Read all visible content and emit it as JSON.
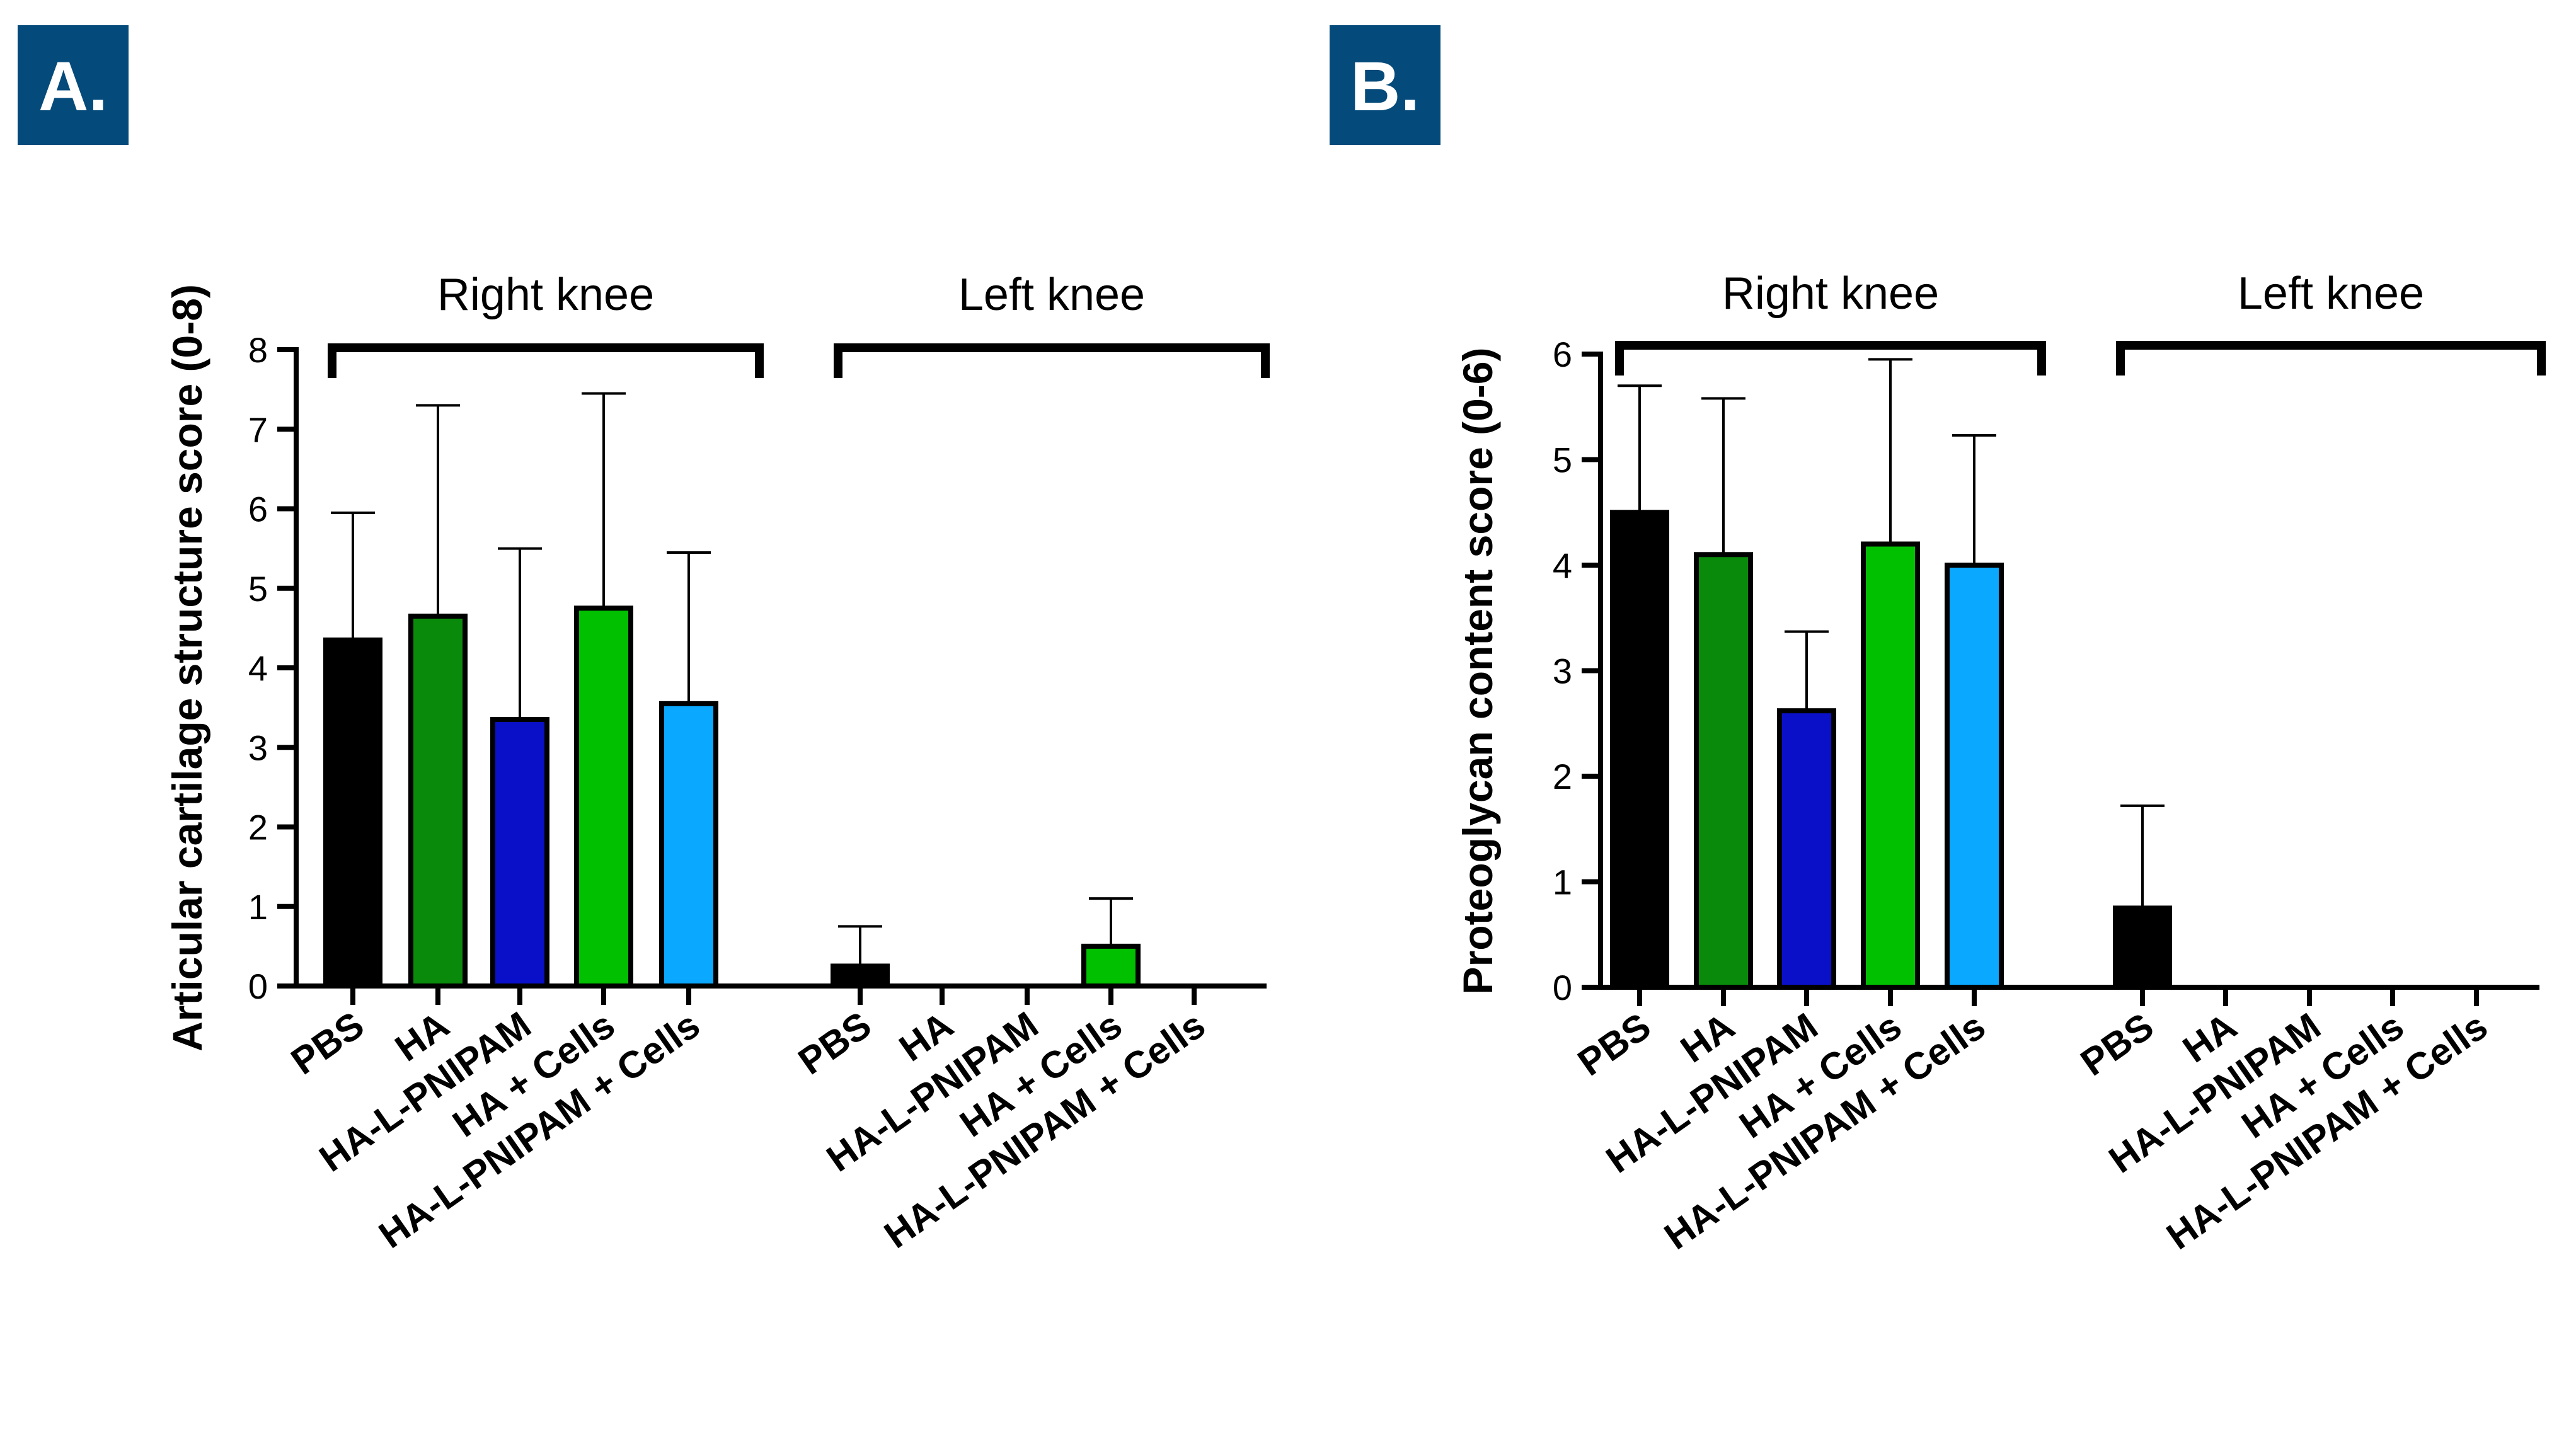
{
  "chart_data": [
    {
      "panel": "A.",
      "type": "bar",
      "ylabel": "Articular cartilage structure score (0-8)",
      "ylim": [
        0,
        8
      ],
      "yticks": [
        0,
        1,
        2,
        3,
        4,
        5,
        6,
        7,
        8
      ],
      "groups": [
        {
          "name": "Right knee",
          "categories": [
            "PBS",
            "HA",
            "HA-L-PNIPAM",
            "HA + Cells",
            "HA-L-PNIPAM + Cells"
          ],
          "values": [
            4.35,
            4.65,
            3.35,
            4.75,
            3.55
          ],
          "errors": [
            1.6,
            2.65,
            2.15,
            2.7,
            1.9
          ]
        },
        {
          "name": "Left knee",
          "categories": [
            "PBS",
            "HA",
            "HA-L-PNIPAM",
            "HA + Cells",
            "HA-L-PNIPAM + Cells"
          ],
          "values": [
            0.25,
            0,
            0,
            0.5,
            0
          ],
          "errors": [
            0.5,
            0,
            0,
            0.6,
            0
          ]
        }
      ],
      "colors": [
        "#000000",
        "#0a8a0a",
        "#0a10c8",
        "#00c000",
        "#0aa8ff"
      ]
    },
    {
      "panel": "B.",
      "type": "bar",
      "ylabel": "Proteoglycan content score (0-6)",
      "ylim": [
        0,
        6
      ],
      "yticks": [
        0,
        1,
        2,
        3,
        4,
        5,
        6
      ],
      "groups": [
        {
          "name": "Right knee",
          "categories": [
            "PBS",
            "HA",
            "HA-L-PNIPAM",
            "HA + Cells",
            "HA-L-PNIPAM + Cells"
          ],
          "values": [
            4.5,
            4.1,
            2.62,
            4.2,
            4.0
          ],
          "errors": [
            1.2,
            1.48,
            0.75,
            1.75,
            1.23
          ]
        },
        {
          "name": "Left knee",
          "categories": [
            "PBS",
            "HA",
            "HA-L-PNIPAM",
            "HA + Cells",
            "HA-L-PNIPAM + Cells"
          ],
          "values": [
            0.75,
            0,
            0,
            0,
            0
          ],
          "errors": [
            0.97,
            0,
            0,
            0,
            0
          ]
        }
      ],
      "colors": [
        "#000000",
        "#0a8a0a",
        "#0a10c8",
        "#00c000",
        "#0aa8ff"
      ]
    }
  ],
  "panel_label_color": "#044a7a"
}
